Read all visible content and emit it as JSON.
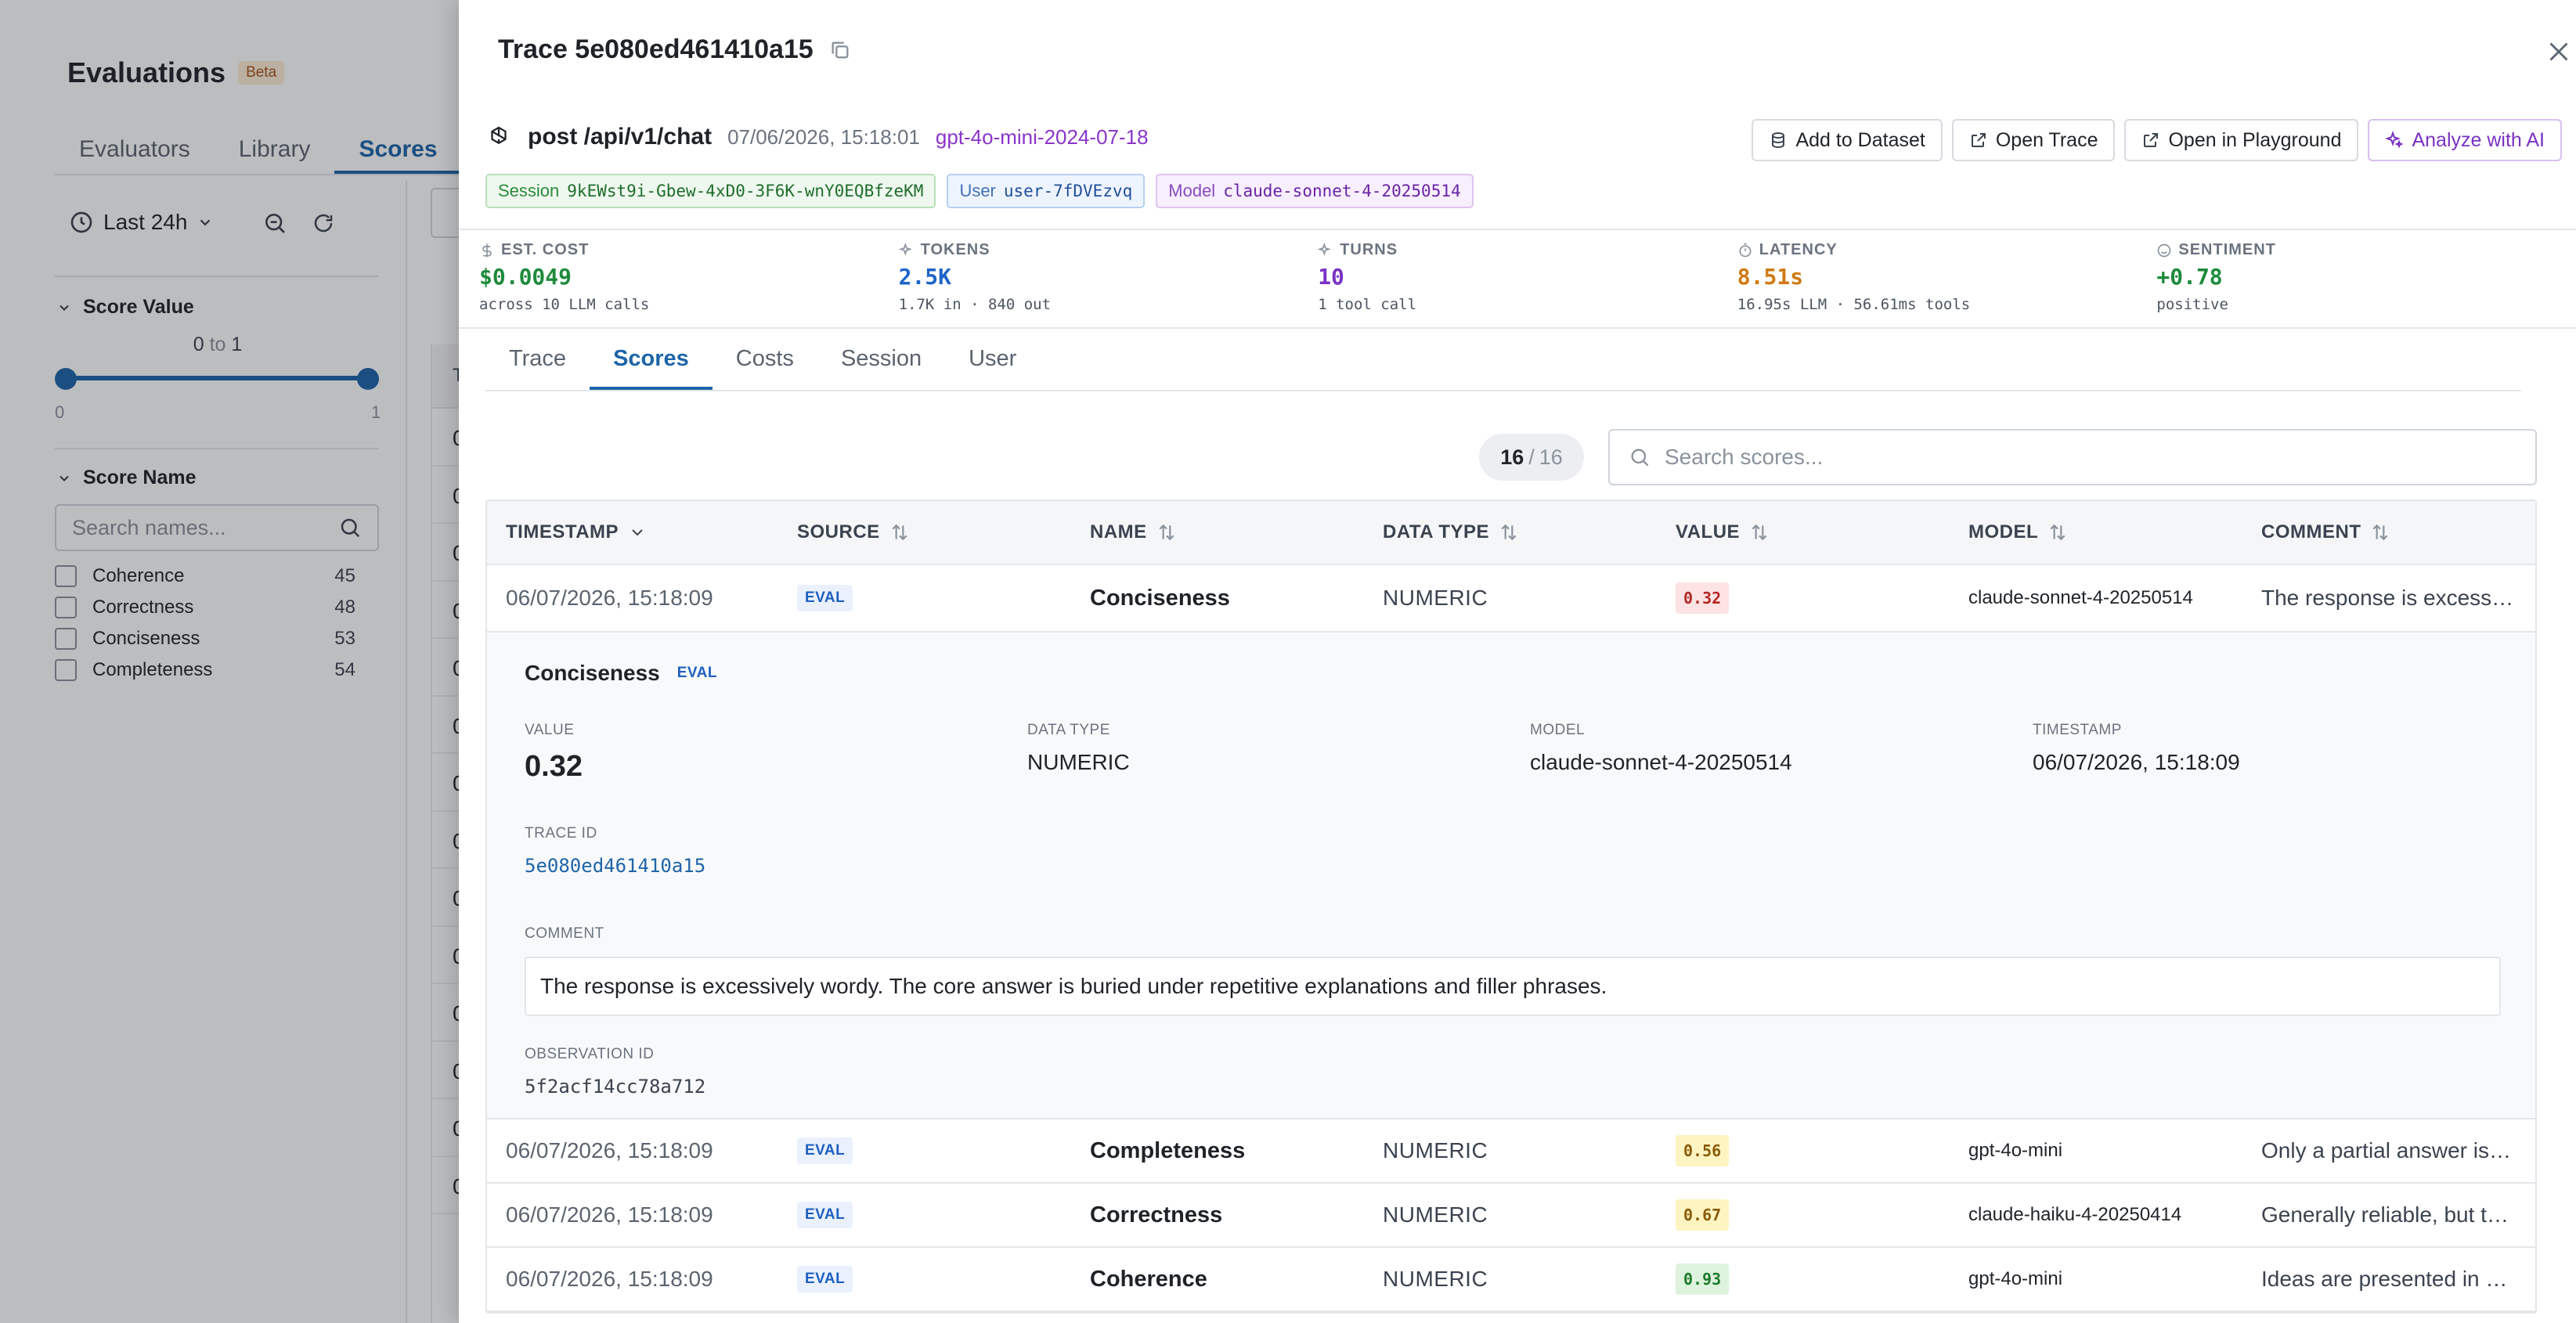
{
  "background": {
    "title": "Evaluations",
    "badge": "Beta",
    "tabs": [
      "Evaluators",
      "Library",
      "Scores"
    ],
    "time_range": "Last 24h",
    "score_value": {
      "label": "Score Value",
      "min_text": "0",
      "to_text": "to",
      "max_text": "1",
      "slider_min": "0",
      "slider_max": "1"
    },
    "score_name": {
      "label": "Score Name",
      "search_placeholder": "Search names...",
      "items": [
        {
          "label": "Coherence",
          "count": "45"
        },
        {
          "label": "Correctness",
          "count": "48"
        },
        {
          "label": "Conciseness",
          "count": "53"
        },
        {
          "label": "Completeness",
          "count": "54"
        }
      ]
    },
    "table_header_fragment": "T",
    "table_fragment": [
      "0",
      "0",
      "0",
      "0",
      "0",
      "0",
      "0",
      "0",
      "0",
      "0",
      "0",
      "0",
      "0",
      "0"
    ]
  },
  "drawer": {
    "title": "Trace 5e080ed461410a15",
    "route": "post /api/v1/chat",
    "timestamp": "07/06/2026, 15:18:01",
    "model_link": "gpt-4o-mini-2024-07-18",
    "actions": {
      "add_to_dataset": "Add to Dataset",
      "open_trace": "Open Trace",
      "open_in_playground": "Open in Playground",
      "analyze_with_ai": "Analyze with AI"
    },
    "tags": {
      "session_label": "Session",
      "session_value": "9kEWst9i-Gbew-4xD0-3F6K-wnY0EQBfzeKM",
      "user_label": "User",
      "user_value": "user-7fDVEzvq",
      "model_label": "Model",
      "model_value": "claude-sonnet-4-20250514"
    },
    "metrics": [
      {
        "label": "EST. COST",
        "value": "$0.0049",
        "sub": "across 10 LLM calls",
        "color": "#1e8a3c"
      },
      {
        "label": "TOKENS",
        "value": "2.5K",
        "sub": "1.7K in · 840 out",
        "color": "#1d65c8"
      },
      {
        "label": "TURNS",
        "value": "10",
        "sub": "1 tool call",
        "color": "#7a32c4"
      },
      {
        "label": "LATENCY",
        "value": "8.51s",
        "sub": "16.95s LLM · 56.61ms tools",
        "color": "#cf7a12"
      },
      {
        "label": "SENTIMENT",
        "value": "+0.78",
        "sub": "positive",
        "color": "#1e8a3c"
      }
    ],
    "tabs": [
      "Trace",
      "Scores",
      "Costs",
      "Session",
      "User"
    ],
    "count": {
      "shown": "16",
      "sep": "/",
      "total": "16"
    },
    "search_placeholder": "Search scores...",
    "table": {
      "headers": [
        "TIMESTAMP",
        "SOURCE",
        "NAME",
        "DATA TYPE",
        "VALUE",
        "MODEL",
        "COMMENT"
      ],
      "rows": [
        {
          "timestamp": "06/07/2026, 15:18:09",
          "source": "EVAL",
          "name": "Conciseness",
          "data_type": "NUMERIC",
          "value": "0.32",
          "model": "claude-sonnet-4-20250514",
          "comment": "The response is excessively wordy. The core answer is buried under repetitive explanations and filler phrases."
        },
        {
          "timestamp": "06/07/2026, 15:18:09",
          "source": "EVAL",
          "name": "Completeness",
          "data_type": "NUMERIC",
          "value": "0.56",
          "model": "gpt-4o-mini",
          "comment": "Only a partial answer is provided."
        },
        {
          "timestamp": "06/07/2026, 15:18:09",
          "source": "EVAL",
          "name": "Correctness",
          "data_type": "NUMERIC",
          "value": "0.67",
          "model": "claude-haiku-4-20250414",
          "comment": "Generally reliable, but there are minor inaccuracies."
        },
        {
          "timestamp": "06/07/2026, 15:18:09",
          "source": "EVAL",
          "name": "Coherence",
          "data_type": "NUMERIC",
          "value": "0.93",
          "model": "gpt-4o-mini",
          "comment": "Ideas are presented in a logical order."
        }
      ]
    },
    "detail": {
      "name": "Conciseness",
      "source": "EVAL",
      "value_label": "VALUE",
      "value": "0.32",
      "data_type_label": "DATA TYPE",
      "data_type": "NUMERIC",
      "model_label": "MODEL",
      "model": "claude-sonnet-4-20250514",
      "timestamp_label": "TIMESTAMP",
      "timestamp": "06/07/2026, 15:18:09",
      "trace_id_label": "TRACE ID",
      "trace_id": "5e080ed461410a15",
      "comment_label": "COMMENT",
      "comment": "The response is excessively wordy. The core answer is buried under repetitive explanations and filler phrases.",
      "observation_id_label": "OBSERVATION ID",
      "observation_id": "5f2acf14cc78a712"
    }
  }
}
